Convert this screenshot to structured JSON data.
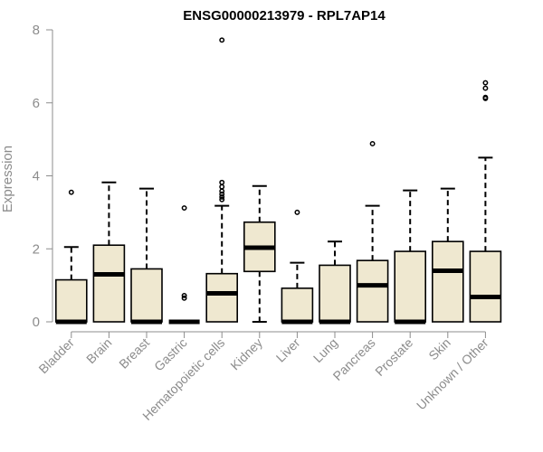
{
  "chart_data": {
    "type": "box",
    "title": "ENSG00000213979 - RPL7AP14",
    "xlabel": "",
    "ylabel": "Expression",
    "ylim": [
      0,
      8
    ],
    "yticks": [
      0,
      2,
      4,
      6,
      8
    ],
    "box_fill": "#efe8d0",
    "stroke_color": "#000000",
    "axis_color": "#8c8c8c",
    "categories": [
      "Bladder",
      "Brain",
      "Breast",
      "Gastric",
      "Hematopoietic cells",
      "Kidney",
      "Liver",
      "Lung",
      "Pancreas",
      "Prostate",
      "Skin",
      "Unknown / Other"
    ],
    "boxes": [
      {
        "category": "Bladder",
        "whisker_low": 0,
        "q1": 0,
        "median": 0,
        "q3": 1.15,
        "whisker_high": 2.05,
        "outliers": [
          3.55
        ]
      },
      {
        "category": "Brain",
        "whisker_low": 0,
        "q1": 0,
        "median": 1.3,
        "q3": 2.1,
        "whisker_high": 3.82,
        "outliers": []
      },
      {
        "category": "Breast",
        "whisker_low": 0,
        "q1": 0,
        "median": 0,
        "q3": 1.45,
        "whisker_high": 3.65,
        "outliers": []
      },
      {
        "category": "Gastric",
        "whisker_low": 0,
        "q1": 0,
        "median": 0,
        "q3": 0,
        "whisker_high": 0,
        "outliers": [
          0.65,
          0.72,
          3.12
        ]
      },
      {
        "category": "Hematopoietic cells",
        "whisker_low": 0,
        "q1": 0,
        "median": 0.78,
        "q3": 1.32,
        "whisker_high": 3.18,
        "outliers": [
          3.35,
          3.42,
          3.5,
          3.58,
          3.7,
          3.82,
          7.72
        ]
      },
      {
        "category": "Kidney",
        "whisker_low": 0,
        "q1": 1.38,
        "median": 2.03,
        "q3": 2.73,
        "whisker_high": 3.72,
        "outliers": []
      },
      {
        "category": "Liver",
        "whisker_low": 0,
        "q1": 0,
        "median": 0,
        "q3": 0.92,
        "whisker_high": 1.62,
        "outliers": [
          3.0
        ]
      },
      {
        "category": "Lung",
        "whisker_low": 0,
        "q1": 0,
        "median": 0,
        "q3": 1.55,
        "whisker_high": 2.2,
        "outliers": []
      },
      {
        "category": "Pancreas",
        "whisker_low": 0,
        "q1": 0,
        "median": 1.0,
        "q3": 1.68,
        "whisker_high": 3.18,
        "outliers": [
          4.88
        ]
      },
      {
        "category": "Prostate",
        "whisker_low": 0,
        "q1": 0,
        "median": 0,
        "q3": 1.93,
        "whisker_high": 3.6,
        "outliers": []
      },
      {
        "category": "Skin",
        "whisker_low": 0,
        "q1": 0,
        "median": 1.4,
        "q3": 2.2,
        "whisker_high": 3.65,
        "outliers": []
      },
      {
        "category": "Unknown / Other",
        "whisker_low": 0,
        "q1": 0,
        "median": 0.68,
        "q3": 1.93,
        "whisker_high": 4.5,
        "outliers": [
          6.12,
          6.15,
          6.4,
          6.55
        ]
      }
    ]
  }
}
